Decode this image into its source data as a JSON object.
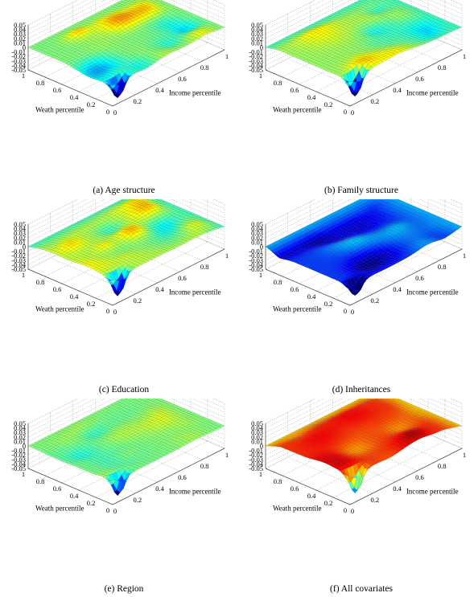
{
  "figure": {
    "panels": [
      {
        "caption": "(a)  Age structure",
        "xlabel": "Income percentile",
        "ylabel": "Weath percentile",
        "style": "rainbow",
        "offset": 0.0,
        "amplitude": 0.01,
        "dip": -0.048
      },
      {
        "caption": "(b) Family structure",
        "xlabel": "Income percentile",
        "ylabel": "Weath percentile",
        "style": "warm",
        "offset": 0.006,
        "amplitude": 0.008,
        "dip": -0.05
      },
      {
        "caption": "(c) Education",
        "xlabel": "Income percentile",
        "ylabel": "Weath percentile",
        "style": "warm",
        "offset": 0.008,
        "amplitude": 0.009,
        "dip": -0.048
      },
      {
        "caption": "(d) Inheritances",
        "xlabel": "Income percentile",
        "ylabel": "Weath percentile",
        "style": "cool",
        "offset": -0.007,
        "amplitude": 0.008,
        "dip": -0.045
      },
      {
        "caption": "(e) Region",
        "xlabel": "Income percentile",
        "ylabel": "Weath percentile",
        "style": "mixed",
        "offset": 0.0,
        "amplitude": 0.007,
        "dip": -0.052
      },
      {
        "caption": "(f) All covariates",
        "xlabel": "Income percentile",
        "ylabel": "Weath percentile",
        "style": "hot",
        "offset": 0.012,
        "amplitude": 0.008,
        "dip": -0.045
      }
    ]
  },
  "chart_data": [
    {
      "type": "surface",
      "title": "",
      "caption": "(a)  Age structure",
      "xlabel": "Income percentile",
      "ylabel": "Weath percentile",
      "zlabel": "",
      "xlim": [
        0,
        1
      ],
      "ylim": [
        0,
        1
      ],
      "zlim": [
        -0.05,
        0.05
      ],
      "xticks": [
        "0",
        "0.2",
        "0.4",
        "0.6",
        "0.8",
        "1"
      ],
      "yticks": [
        "0",
        "0.2",
        "0.4",
        "0.6",
        "0.8",
        "1"
      ],
      "zticks": [
        "0.05",
        "0.04",
        "0.03",
        "0.02",
        "0.01",
        "0",
        "-0.01",
        "-0.02",
        "-0.03",
        "-0.04",
        "-0.05"
      ],
      "z_min_approx": -0.048,
      "z_min_location": {
        "income": 0.05,
        "wealth": 0.05
      },
      "z_typical_range": [
        -0.01,
        0.01
      ],
      "grid": true
    },
    {
      "type": "surface",
      "title": "",
      "caption": "(b) Family structure",
      "xlabel": "Income percentile",
      "ylabel": "Weath percentile",
      "zlabel": "",
      "xlim": [
        0,
        1
      ],
      "ylim": [
        0,
        1
      ],
      "zlim": [
        -0.05,
        0.05
      ],
      "xticks": [
        "0",
        "0.2",
        "0.4",
        "0.6",
        "0.8",
        "1"
      ],
      "yticks": [
        "0",
        "0.2",
        "0.4",
        "0.6",
        "0.8",
        "1"
      ],
      "zticks": [
        "0.05",
        "0.04",
        "0.03",
        "0.02",
        "0.01",
        "0",
        "-0.01",
        "-0.02",
        "-0.03",
        "-0.04",
        "-0.05"
      ],
      "z_min_approx": -0.05,
      "z_min_location": {
        "income": 0.05,
        "wealth": 0.05
      },
      "z_typical_range": [
        0.0,
        0.012
      ],
      "grid": true
    },
    {
      "type": "surface",
      "title": "",
      "caption": "(c) Education",
      "xlabel": "Income percentile",
      "ylabel": "Weath percentile",
      "zlabel": "",
      "xlim": [
        0,
        1
      ],
      "ylim": [
        0,
        1
      ],
      "zlim": [
        -0.05,
        0.05
      ],
      "xticks": [
        "0",
        "0.2",
        "0.4",
        "0.6",
        "0.8",
        "1"
      ],
      "yticks": [
        "0",
        "0.2",
        "0.4",
        "0.6",
        "0.8",
        "1"
      ],
      "zticks": [
        "0.05",
        "0.04",
        "0.03",
        "0.02",
        "0.01",
        "0",
        "-0.01",
        "-0.02",
        "-0.03",
        "-0.04",
        "-0.05"
      ],
      "z_min_approx": -0.048,
      "z_min_location": {
        "income": 0.05,
        "wealth": 0.05
      },
      "z_typical_range": [
        0.0,
        0.015
      ],
      "grid": true
    },
    {
      "type": "surface",
      "title": "",
      "caption": "(d) Inheritances",
      "xlabel": "Income percentile",
      "ylabel": "Weath percentile",
      "zlabel": "",
      "xlim": [
        0,
        1
      ],
      "ylim": [
        0,
        1
      ],
      "zlim": [
        -0.05,
        0.05
      ],
      "xticks": [
        "0",
        "0.2",
        "0.4",
        "0.6",
        "0.8",
        "1"
      ],
      "yticks": [
        "0",
        "0.2",
        "0.4",
        "0.6",
        "0.8",
        "1"
      ],
      "zticks": [
        "0.05",
        "0.04",
        "0.03",
        "0.02",
        "0.01",
        "0",
        "-0.01",
        "-0.02",
        "-0.03",
        "-0.04",
        "-0.05"
      ],
      "z_min_approx": -0.045,
      "z_min_location": {
        "income": 0.05,
        "wealth": 0.05
      },
      "z_typical_range": [
        -0.015,
        0.0
      ],
      "grid": true
    },
    {
      "type": "surface",
      "title": "",
      "caption": "(e) Region",
      "xlabel": "Income percentile",
      "ylabel": "Weath percentile",
      "zlabel": "",
      "xlim": [
        0,
        1
      ],
      "ylim": [
        0,
        1
      ],
      "zlim": [
        -0.05,
        0.05
      ],
      "xticks": [
        "0",
        "0.2",
        "0.4",
        "0.6",
        "0.8",
        "1"
      ],
      "yticks": [
        "0",
        "0.2",
        "0.4",
        "0.6",
        "0.8",
        "1"
      ],
      "zticks": [
        "0.05",
        "0.04",
        "0.03",
        "0.02",
        "0.01",
        "0",
        "-0.01",
        "-0.02",
        "-0.03",
        "-0.04",
        "-0.05"
      ],
      "z_min_approx": -0.052,
      "z_min_location": {
        "income": 0.05,
        "wealth": 0.05
      },
      "z_typical_range": [
        -0.008,
        0.008
      ],
      "grid": true
    },
    {
      "type": "surface",
      "title": "",
      "caption": "(f) All covariates",
      "xlabel": "Income percentile",
      "ylabel": "Weath percentile",
      "zlabel": "",
      "xlim": [
        0,
        1
      ],
      "ylim": [
        0,
        1
      ],
      "zlim": [
        -0.05,
        0.05
      ],
      "xticks": [
        "0",
        "0.2",
        "0.4",
        "0.6",
        "0.8",
        "1"
      ],
      "yticks": [
        "0",
        "0.2",
        "0.4",
        "0.6",
        "0.8",
        "1"
      ],
      "zticks": [
        "0.05",
        "0.04",
        "0.03",
        "0.02",
        "0.01",
        "0",
        "-0.01",
        "-0.02",
        "-0.03",
        "-0.04",
        "-0.05"
      ],
      "z_min_approx": -0.045,
      "z_min_location": {
        "income": 0.05,
        "wealth": 0.05
      },
      "z_typical_range": [
        0.005,
        0.02
      ],
      "grid": true
    }
  ]
}
